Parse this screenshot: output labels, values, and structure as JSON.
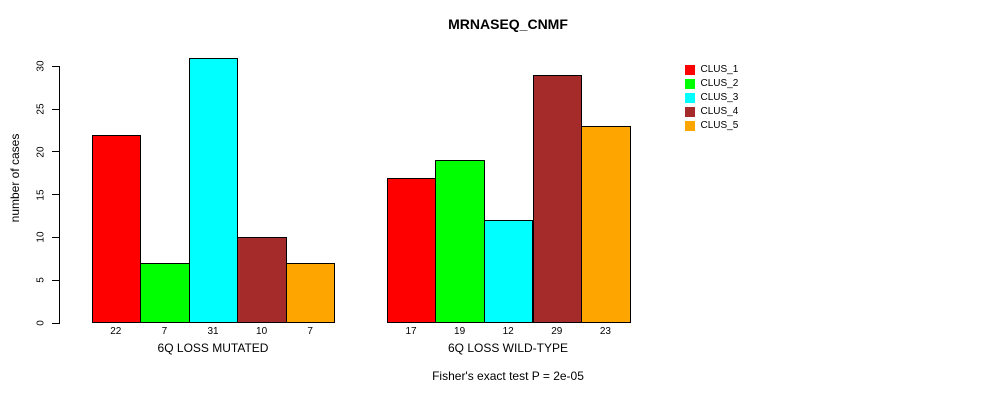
{
  "title": "MRNASEQ_CNMF",
  "subtitle": "Fisher's exact test P = 2e-05",
  "y_axis": {
    "label": "number of cases",
    "ticks": [
      0,
      5,
      10,
      15,
      20,
      25,
      30
    ]
  },
  "legend": {
    "items": [
      {
        "label": "CLUS_1",
        "color": "#FF0000"
      },
      {
        "label": "CLUS_2",
        "color": "#00FF00"
      },
      {
        "label": "CLUS_3",
        "color": "#00FFFF"
      },
      {
        "label": "CLUS_4",
        "color": "#A52A2A"
      },
      {
        "label": "CLUS_5",
        "color": "#FFA500"
      }
    ]
  },
  "chart_data": {
    "type": "bar",
    "title": "MRNASEQ_CNMF",
    "xlabel": "",
    "ylabel": "number of cases",
    "ylim": [
      0,
      30
    ],
    "yticks": [
      0,
      5,
      10,
      15,
      20,
      25,
      30
    ],
    "grid": false,
    "legend_position": "right",
    "annotation": "Fisher's exact test P = 2e-05",
    "bar_value_labels_shown": true,
    "categories": [
      "6Q LOSS MUTATED",
      "6Q LOSS WILD-TYPE"
    ],
    "series": [
      {
        "name": "CLUS_1",
        "color": "#FF0000",
        "values": [
          22,
          17
        ]
      },
      {
        "name": "CLUS_2",
        "color": "#00FF00",
        "values": [
          7,
          19
        ]
      },
      {
        "name": "CLUS_3",
        "color": "#00FFFF",
        "values": [
          31,
          12
        ]
      },
      {
        "name": "CLUS_4",
        "color": "#A52A2A",
        "values": [
          10,
          29
        ]
      },
      {
        "name": "CLUS_5",
        "color": "#FFA500",
        "values": [
          7,
          23
        ]
      }
    ]
  }
}
